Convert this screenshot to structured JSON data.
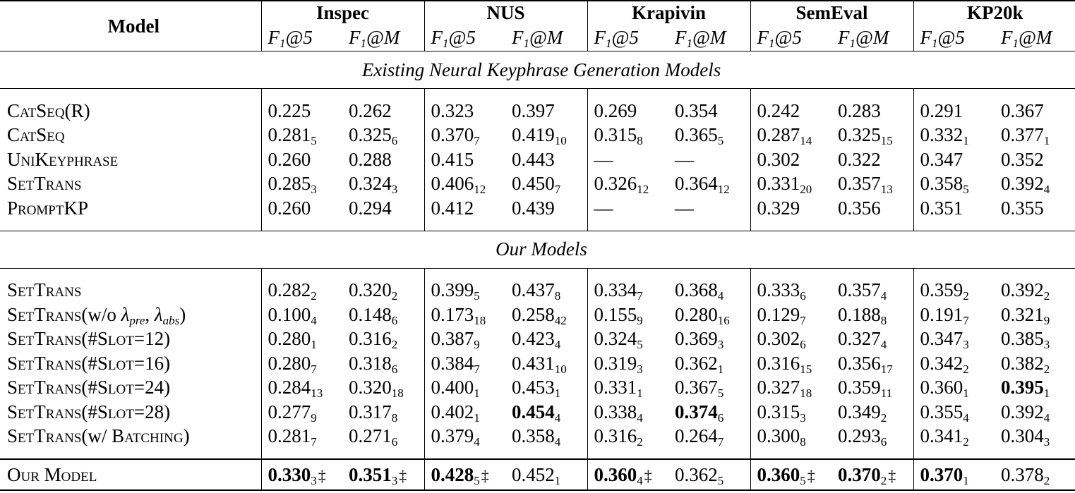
{
  "table": {
    "model_header": "Model",
    "datasets": [
      "Inspec",
      "NUS",
      "Krapivin",
      "SemEval",
      "KP20k"
    ],
    "metrics": [
      "F1@5",
      "F1@M"
    ],
    "sections": [
      {
        "title": "Existing Neural Keyphrase Generation Models",
        "rows": [
          {
            "model": "CatSeq(R)",
            "cells": [
              {
                "v": "0.225",
                "s": "",
                "b": false,
                "d": ""
              },
              {
                "v": "0.262",
                "s": "",
                "b": false,
                "d": ""
              },
              {
                "v": "0.323",
                "s": "",
                "b": false,
                "d": ""
              },
              {
                "v": "0.397",
                "s": "",
                "b": false,
                "d": ""
              },
              {
                "v": "0.269",
                "s": "",
                "b": false,
                "d": ""
              },
              {
                "v": "0.354",
                "s": "",
                "b": false,
                "d": ""
              },
              {
                "v": "0.242",
                "s": "",
                "b": false,
                "d": ""
              },
              {
                "v": "0.283",
                "s": "",
                "b": false,
                "d": ""
              },
              {
                "v": "0.291",
                "s": "",
                "b": false,
                "d": ""
              },
              {
                "v": "0.367",
                "s": "",
                "b": false,
                "d": ""
              }
            ]
          },
          {
            "model": "CatSeq",
            "cells": [
              {
                "v": "0.281",
                "s": "5",
                "b": false,
                "d": ""
              },
              {
                "v": "0.325",
                "s": "6",
                "b": false,
                "d": ""
              },
              {
                "v": "0.370",
                "s": "7",
                "b": false,
                "d": ""
              },
              {
                "v": "0.419",
                "s": "10",
                "b": false,
                "d": ""
              },
              {
                "v": "0.315",
                "s": "8",
                "b": false,
                "d": ""
              },
              {
                "v": "0.365",
                "s": "5",
                "b": false,
                "d": ""
              },
              {
                "v": "0.287",
                "s": "14",
                "b": false,
                "d": ""
              },
              {
                "v": "0.325",
                "s": "15",
                "b": false,
                "d": ""
              },
              {
                "v": "0.332",
                "s": "1",
                "b": false,
                "d": ""
              },
              {
                "v": "0.377",
                "s": "1",
                "b": false,
                "d": ""
              }
            ]
          },
          {
            "model": "UniKeyphrase",
            "cells": [
              {
                "v": "0.260",
                "s": "",
                "b": false,
                "d": ""
              },
              {
                "v": "0.288",
                "s": "",
                "b": false,
                "d": ""
              },
              {
                "v": "0.415",
                "s": "",
                "b": false,
                "d": ""
              },
              {
                "v": "0.443",
                "s": "",
                "b": false,
                "d": ""
              },
              {
                "v": "—",
                "s": "",
                "b": false,
                "d": ""
              },
              {
                "v": "—",
                "s": "",
                "b": false,
                "d": ""
              },
              {
                "v": "0.302",
                "s": "",
                "b": false,
                "d": ""
              },
              {
                "v": "0.322",
                "s": "",
                "b": false,
                "d": ""
              },
              {
                "v": "0.347",
                "s": "",
                "b": false,
                "d": ""
              },
              {
                "v": "0.352",
                "s": "",
                "b": false,
                "d": ""
              }
            ]
          },
          {
            "model": "SetTrans",
            "cells": [
              {
                "v": "0.285",
                "s": "3",
                "b": false,
                "d": ""
              },
              {
                "v": "0.324",
                "s": "3",
                "b": false,
                "d": ""
              },
              {
                "v": "0.406",
                "s": "12",
                "b": false,
                "d": ""
              },
              {
                "v": "0.450",
                "s": "7",
                "b": false,
                "d": ""
              },
              {
                "v": "0.326",
                "s": "12",
                "b": false,
                "d": ""
              },
              {
                "v": "0.364",
                "s": "12",
                "b": false,
                "d": ""
              },
              {
                "v": "0.331",
                "s": "20",
                "b": false,
                "d": ""
              },
              {
                "v": "0.357",
                "s": "13",
                "b": false,
                "d": ""
              },
              {
                "v": "0.358",
                "s": "5",
                "b": false,
                "d": ""
              },
              {
                "v": "0.392",
                "s": "4",
                "b": false,
                "d": ""
              }
            ]
          },
          {
            "model": "PromptKP",
            "cells": [
              {
                "v": "0.260",
                "s": "",
                "b": false,
                "d": ""
              },
              {
                "v": "0.294",
                "s": "",
                "b": false,
                "d": ""
              },
              {
                "v": "0.412",
                "s": "",
                "b": false,
                "d": ""
              },
              {
                "v": "0.439",
                "s": "",
                "b": false,
                "d": ""
              },
              {
                "v": "—",
                "s": "",
                "b": false,
                "d": ""
              },
              {
                "v": "—",
                "s": "",
                "b": false,
                "d": ""
              },
              {
                "v": "0.329",
                "s": "",
                "b": false,
                "d": ""
              },
              {
                "v": "0.356",
                "s": "",
                "b": false,
                "d": ""
              },
              {
                "v": "0.351",
                "s": "",
                "b": false,
                "d": ""
              },
              {
                "v": "0.355",
                "s": "",
                "b": false,
                "d": ""
              }
            ]
          }
        ]
      },
      {
        "title": "Our Models",
        "rows": [
          {
            "model": "SetTrans",
            "cells": [
              {
                "v": "0.282",
                "s": "2",
                "b": false,
                "d": ""
              },
              {
                "v": "0.320",
                "s": "2",
                "b": false,
                "d": ""
              },
              {
                "v": "0.399",
                "s": "5",
                "b": false,
                "d": ""
              },
              {
                "v": "0.437",
                "s": "8",
                "b": false,
                "d": ""
              },
              {
                "v": "0.334",
                "s": "7",
                "b": false,
                "d": ""
              },
              {
                "v": "0.368",
                "s": "4",
                "b": false,
                "d": ""
              },
              {
                "v": "0.333",
                "s": "6",
                "b": false,
                "d": ""
              },
              {
                "v": "0.357",
                "s": "4",
                "b": false,
                "d": ""
              },
              {
                "v": "0.359",
                "s": "2",
                "b": false,
                "d": ""
              },
              {
                "v": "0.392",
                "s": "2",
                "b": false,
                "d": ""
              }
            ]
          },
          {
            "model": "SetTrans(w/o λpre, λabs)",
            "cells": [
              {
                "v": "0.100",
                "s": "4",
                "b": false,
                "d": ""
              },
              {
                "v": "0.148",
                "s": "6",
                "b": false,
                "d": ""
              },
              {
                "v": "0.173",
                "s": "18",
                "b": false,
                "d": ""
              },
              {
                "v": "0.258",
                "s": "42",
                "b": false,
                "d": ""
              },
              {
                "v": "0.155",
                "s": "9",
                "b": false,
                "d": ""
              },
              {
                "v": "0.280",
                "s": "16",
                "b": false,
                "d": ""
              },
              {
                "v": "0.129",
                "s": "7",
                "b": false,
                "d": ""
              },
              {
                "v": "0.188",
                "s": "8",
                "b": false,
                "d": ""
              },
              {
                "v": "0.191",
                "s": "7",
                "b": false,
                "d": ""
              },
              {
                "v": "0.321",
                "s": "9",
                "b": false,
                "d": ""
              }
            ]
          },
          {
            "model": "SetTrans(#Slot=12)",
            "cells": [
              {
                "v": "0.280",
                "s": "1",
                "b": false,
                "d": ""
              },
              {
                "v": "0.316",
                "s": "2",
                "b": false,
                "d": ""
              },
              {
                "v": "0.387",
                "s": "9",
                "b": false,
                "d": ""
              },
              {
                "v": "0.423",
                "s": "4",
                "b": false,
                "d": ""
              },
              {
                "v": "0.324",
                "s": "5",
                "b": false,
                "d": ""
              },
              {
                "v": "0.369",
                "s": "3",
                "b": false,
                "d": ""
              },
              {
                "v": "0.302",
                "s": "6",
                "b": false,
                "d": ""
              },
              {
                "v": "0.327",
                "s": "4",
                "b": false,
                "d": ""
              },
              {
                "v": "0.347",
                "s": "3",
                "b": false,
                "d": ""
              },
              {
                "v": "0.385",
                "s": "3",
                "b": false,
                "d": ""
              }
            ]
          },
          {
            "model": "SetTrans(#Slot=16)",
            "cells": [
              {
                "v": "0.280",
                "s": "7",
                "b": false,
                "d": ""
              },
              {
                "v": "0.318",
                "s": "6",
                "b": false,
                "d": ""
              },
              {
                "v": "0.384",
                "s": "7",
                "b": false,
                "d": ""
              },
              {
                "v": "0.431",
                "s": "10",
                "b": false,
                "d": ""
              },
              {
                "v": "0.319",
                "s": "3",
                "b": false,
                "d": ""
              },
              {
                "v": "0.362",
                "s": "1",
                "b": false,
                "d": ""
              },
              {
                "v": "0.316",
                "s": "15",
                "b": false,
                "d": ""
              },
              {
                "v": "0.356",
                "s": "17",
                "b": false,
                "d": ""
              },
              {
                "v": "0.342",
                "s": "2",
                "b": false,
                "d": ""
              },
              {
                "v": "0.382",
                "s": "2",
                "b": false,
                "d": ""
              }
            ]
          },
          {
            "model": "SetTrans(#Slot=24)",
            "cells": [
              {
                "v": "0.284",
                "s": "13",
                "b": false,
                "d": ""
              },
              {
                "v": "0.320",
                "s": "18",
                "b": false,
                "d": ""
              },
              {
                "v": "0.400",
                "s": "1",
                "b": false,
                "d": ""
              },
              {
                "v": "0.453",
                "s": "1",
                "b": false,
                "d": ""
              },
              {
                "v": "0.331",
                "s": "1",
                "b": false,
                "d": ""
              },
              {
                "v": "0.367",
                "s": "5",
                "b": false,
                "d": ""
              },
              {
                "v": "0.327",
                "s": "18",
                "b": false,
                "d": ""
              },
              {
                "v": "0.359",
                "s": "11",
                "b": false,
                "d": ""
              },
              {
                "v": "0.360",
                "s": "1",
                "b": false,
                "d": ""
              },
              {
                "v": "0.395",
                "s": "1",
                "b": true,
                "d": ""
              }
            ]
          },
          {
            "model": "SetTrans(#Slot=28)",
            "cells": [
              {
                "v": "0.277",
                "s": "9",
                "b": false,
                "d": ""
              },
              {
                "v": "0.317",
                "s": "8",
                "b": false,
                "d": ""
              },
              {
                "v": "0.402",
                "s": "1",
                "b": false,
                "d": ""
              },
              {
                "v": "0.454",
                "s": "4",
                "b": true,
                "d": ""
              },
              {
                "v": "0.338",
                "s": "4",
                "b": false,
                "d": ""
              },
              {
                "v": "0.374",
                "s": "6",
                "b": true,
                "d": ""
              },
              {
                "v": "0.315",
                "s": "3",
                "b": false,
                "d": ""
              },
              {
                "v": "0.349",
                "s": "2",
                "b": false,
                "d": ""
              },
              {
                "v": "0.355",
                "s": "4",
                "b": false,
                "d": ""
              },
              {
                "v": "0.392",
                "s": "4",
                "b": false,
                "d": ""
              }
            ]
          },
          {
            "model": "SetTrans(w/ Batching)",
            "cells": [
              {
                "v": "0.281",
                "s": "7",
                "b": false,
                "d": ""
              },
              {
                "v": "0.271",
                "s": "6",
                "b": false,
                "d": ""
              },
              {
                "v": "0.379",
                "s": "4",
                "b": false,
                "d": ""
              },
              {
                "v": "0.358",
                "s": "4",
                "b": false,
                "d": ""
              },
              {
                "v": "0.316",
                "s": "2",
                "b": false,
                "d": ""
              },
              {
                "v": "0.264",
                "s": "7",
                "b": false,
                "d": ""
              },
              {
                "v": "0.300",
                "s": "8",
                "b": false,
                "d": ""
              },
              {
                "v": "0.293",
                "s": "6",
                "b": false,
                "d": ""
              },
              {
                "v": "0.341",
                "s": "2",
                "b": false,
                "d": ""
              },
              {
                "v": "0.304",
                "s": "3",
                "b": false,
                "d": ""
              }
            ]
          }
        ]
      }
    ],
    "final_row": {
      "model": "Our Model",
      "cells": [
        {
          "v": "0.330",
          "s": "3",
          "b": true,
          "d": "‡"
        },
        {
          "v": "0.351",
          "s": "3",
          "b": true,
          "d": "‡"
        },
        {
          "v": "0.428",
          "s": "5",
          "b": true,
          "d": "‡"
        },
        {
          "v": "0.452",
          "s": "1",
          "b": false,
          "d": ""
        },
        {
          "v": "0.360",
          "s": "4",
          "b": true,
          "d": "‡"
        },
        {
          "v": "0.362",
          "s": "5",
          "b": false,
          "d": ""
        },
        {
          "v": "0.360",
          "s": "5",
          "b": true,
          "d": "‡"
        },
        {
          "v": "0.370",
          "s": "2",
          "b": true,
          "d": "‡"
        },
        {
          "v": "0.370",
          "s": "1",
          "b": true,
          "d": ""
        },
        {
          "v": "0.378",
          "s": "2",
          "b": false,
          "d": ""
        }
      ]
    }
  }
}
